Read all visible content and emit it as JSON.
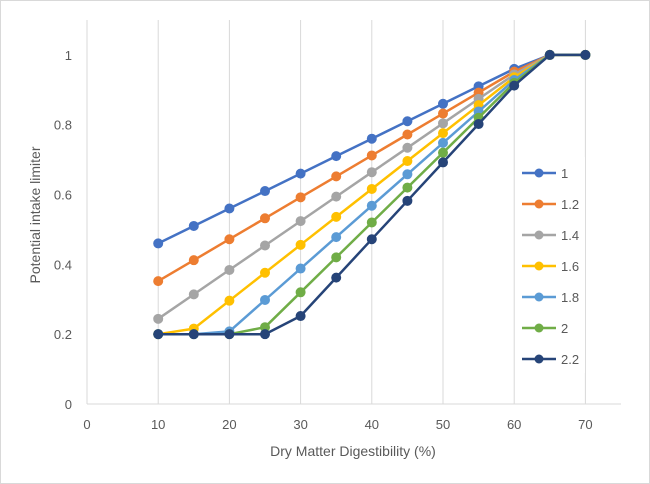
{
  "chart_data": {
    "type": "line",
    "xlabel": "Dry Matter Digestibility (%)",
    "ylabel": "Potential intake limiter",
    "xlim": [
      0,
      75
    ],
    "ylim": [
      0,
      1.1
    ],
    "xticks": [
      0,
      10,
      20,
      30,
      40,
      50,
      60,
      70
    ],
    "yticks": [
      0,
      0.2,
      0.4,
      0.6,
      0.8,
      1
    ],
    "x_tick_labels": [
      "0",
      "10",
      "20",
      "30",
      "40",
      "50",
      "60",
      "70"
    ],
    "y_tick_labels": [
      "0",
      "0.2",
      "0.4",
      "0.6",
      "0.8",
      "1"
    ],
    "grid": "vertical",
    "legend_position": "right",
    "x": [
      10,
      15,
      20,
      25,
      30,
      35,
      40,
      45,
      50,
      55,
      60,
      65,
      70
    ],
    "series": [
      {
        "name": "1",
        "color": "#4472C4",
        "values": [
          0.46,
          0.51,
          0.56,
          0.61,
          0.66,
          0.71,
          0.76,
          0.81,
          0.86,
          0.91,
          0.96,
          1,
          1
        ]
      },
      {
        "name": "1.2",
        "color": "#ED7D31",
        "values": [
          0.352,
          0.412,
          0.472,
          0.532,
          0.592,
          0.652,
          0.712,
          0.772,
          0.832,
          0.892,
          0.952,
          1,
          1
        ]
      },
      {
        "name": "1.4",
        "color": "#A5A5A5",
        "values": [
          0.244,
          0.314,
          0.384,
          0.454,
          0.524,
          0.594,
          0.664,
          0.734,
          0.804,
          0.874,
          0.944,
          1,
          1
        ]
      },
      {
        "name": "1.6",
        "color": "#FFC000",
        "values": [
          0.2,
          0.216,
          0.296,
          0.376,
          0.456,
          0.536,
          0.616,
          0.696,
          0.776,
          0.856,
          0.936,
          1,
          1
        ]
      },
      {
        "name": "1.8",
        "color": "#5B9BD5",
        "values": [
          0.2,
          0.2,
          0.208,
          0.298,
          0.388,
          0.478,
          0.568,
          0.658,
          0.748,
          0.838,
          0.928,
          1,
          1
        ]
      },
      {
        "name": "2",
        "color": "#70AD47",
        "values": [
          0.2,
          0.2,
          0.2,
          0.22,
          0.32,
          0.42,
          0.52,
          0.62,
          0.72,
          0.82,
          0.92,
          1,
          1
        ]
      },
      {
        "name": "2.2",
        "color": "#264478",
        "values": [
          0.2,
          0.2,
          0.2,
          0.2,
          0.252,
          0.362,
          0.472,
          0.582,
          0.692,
          0.802,
          0.912,
          1,
          1
        ]
      }
    ]
  }
}
